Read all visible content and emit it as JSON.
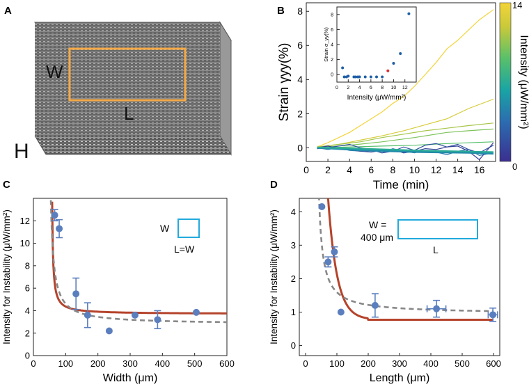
{
  "panels": {
    "A": {
      "label": "A",
      "dim_W": "W",
      "dim_L": "L",
      "dim_H": "H",
      "box_color": "#f4a946"
    },
    "B": {
      "label": "B",
      "inset_ylabel": "Strain σ_yy(%)",
      "colorbar": {
        "label": "Intensity (μW/mm²)",
        "max_label": "14",
        "min_label": "0",
        "min": 0,
        "max": 14
      }
    },
    "C": {
      "label": "C",
      "legend_W": "W",
      "legend_LW": "L=W",
      "legend_color": "#22aadd"
    },
    "D": {
      "label": "D",
      "legend_W": "W =",
      "legend_size": "400 μm",
      "legend_L": "L",
      "legend_color": "#22aadd"
    }
  },
  "colors": {
    "marker": "#5b7fbe",
    "fit_red": "#b5432b",
    "fit_gray": "#888888",
    "inset_red": "#d93030"
  },
  "chart_data": [
    {
      "id": "B",
      "type": "line",
      "title": "",
      "xlabel": "Time (min)",
      "ylabel": "Strain γyy(%)",
      "xlim": [
        0,
        17.5
      ],
      "ylim": [
        -0.8,
        8.5
      ],
      "xticks": [
        0,
        2,
        4,
        6,
        8,
        10,
        12,
        14,
        16
      ],
      "yticks": [
        0,
        2,
        4,
        6,
        8
      ],
      "series": [
        {
          "name": "14",
          "intensity": 14,
          "x": [
            1,
            2,
            3,
            4,
            5,
            6,
            7,
            8,
            9,
            10,
            11,
            12,
            13,
            14,
            15,
            16,
            17.3
          ],
          "y": [
            0.05,
            0.3,
            0.6,
            0.9,
            1.3,
            1.7,
            2.1,
            2.6,
            3.0,
            3.6,
            4.3,
            5.0,
            5.8,
            6.3,
            6.9,
            7.5,
            8.1
          ]
        },
        {
          "name": "12.5",
          "intensity": 12.5,
          "x": [
            1,
            3,
            5,
            7,
            9,
            11,
            13,
            15,
            17.3
          ],
          "y": [
            0.05,
            0.2,
            0.45,
            0.7,
            1.0,
            1.35,
            1.7,
            2.3,
            2.85
          ]
        },
        {
          "name": "11",
          "intensity": 11,
          "x": [
            1,
            3,
            5,
            7,
            9,
            11,
            13,
            15,
            17.3
          ],
          "y": [
            0.05,
            0.2,
            0.35,
            0.6,
            0.8,
            1.0,
            1.15,
            1.3,
            1.45
          ]
        },
        {
          "name": "10",
          "intensity": 10,
          "x": [
            1,
            4,
            7,
            10,
            13,
            15,
            17.3
          ],
          "y": [
            0.02,
            0.15,
            0.35,
            0.6,
            0.9,
            1.0,
            1.1
          ]
        },
        {
          "name": "9",
          "intensity": 9,
          "x": [
            1,
            4,
            7,
            10,
            13,
            17.3
          ],
          "y": [
            0.0,
            0.05,
            0.1,
            0.15,
            0.25,
            0.35
          ]
        },
        {
          "name": "4",
          "intensity": 4,
          "x": [
            1,
            2,
            3,
            4,
            5,
            6,
            7,
            8,
            9,
            10,
            11,
            12,
            13,
            14,
            15,
            16,
            17.3
          ],
          "y": [
            0.0,
            -0.1,
            0.0,
            -0.15,
            -0.2,
            -0.1,
            -0.3,
            -0.05,
            -0.2,
            -0.3,
            -0.15,
            -0.25,
            -0.4,
            -0.2,
            -0.1,
            -0.45,
            -0.3
          ]
        },
        {
          "name": "2",
          "intensity": 2,
          "x": [
            1,
            2,
            3,
            4,
            5,
            6,
            7,
            8,
            9,
            10,
            11,
            12,
            13,
            14,
            15,
            16,
            17.3
          ],
          "y": [
            -0.05,
            0.0,
            0.1,
            0.2,
            0.0,
            -0.1,
            -0.3,
            -0.2,
            0.05,
            -0.15,
            0.15,
            0.25,
            0.05,
            0.2,
            -0.1,
            -0.3,
            0.15
          ]
        },
        {
          "name": "1",
          "intensity": 1,
          "x": [
            1,
            2,
            3,
            4,
            5,
            6,
            7,
            8,
            9,
            10,
            11,
            12,
            13,
            14,
            15,
            16,
            17.3
          ],
          "y": [
            0.0,
            0.1,
            -0.05,
            -0.1,
            -0.2,
            -0.25,
            -0.15,
            -0.1,
            -0.3,
            -0.2,
            -0.05,
            -0.1,
            0.05,
            0.1,
            -0.2,
            -0.7,
            0.3
          ]
        },
        {
          "name": "6",
          "intensity": 6,
          "x": [
            1,
            5,
            10,
            15,
            17.3
          ],
          "y": [
            0.0,
            -0.1,
            -0.2,
            -0.25,
            -0.3
          ]
        },
        {
          "name": "5",
          "intensity": 5,
          "x": [
            1,
            5,
            10,
            15,
            17.3
          ],
          "y": [
            0.0,
            -0.15,
            -0.25,
            -0.3,
            -0.35
          ]
        },
        {
          "name": "7",
          "intensity": 7,
          "x": [
            1,
            5,
            10,
            15,
            17.3
          ],
          "y": [
            0.02,
            -0.05,
            -0.15,
            -0.22,
            -0.25
          ]
        }
      ],
      "inset": {
        "type": "scatter",
        "xlabel": "Intensity (μW/mm²)",
        "ylabel": "Strain σyy(%)",
        "xlim": [
          0,
          14
        ],
        "ylim": [
          -1,
          9
        ],
        "xticks": [
          0,
          2,
          4,
          6,
          8,
          10,
          12
        ],
        "yticks": [
          0,
          2,
          4,
          6,
          8
        ],
        "x": [
          1.0,
          1.3,
          1.7,
          2.0,
          3.0,
          3.3,
          3.7,
          4.0,
          5.0,
          6.0,
          7.0,
          8.0,
          9.0,
          10.0,
          11.2,
          12.7
        ],
        "y": [
          0.9,
          -0.3,
          -0.3,
          -0.2,
          -0.3,
          -0.3,
          -0.3,
          -0.3,
          -0.3,
          -0.3,
          -0.3,
          -0.3,
          0.5,
          1.5,
          2.8,
          8.1
        ],
        "highlight_index": 12
      }
    },
    {
      "id": "C",
      "type": "scatter",
      "xlabel": "Width (μm)",
      "ylabel": "Intensity for Instability (μW/mm²)",
      "xlim": [
        0,
        600
      ],
      "ylim": [
        0,
        14
      ],
      "xticks": [
        0,
        100,
        200,
        300,
        400,
        500,
        600
      ],
      "yticks": [
        0,
        2,
        4,
        6,
        8,
        10,
        12
      ],
      "points": [
        {
          "x": 66,
          "y": 12.5,
          "yerr": 0.5
        },
        {
          "x": 80,
          "y": 11.3,
          "yerr": 0.8
        },
        {
          "x": 132,
          "y": 5.5,
          "yerr": 1.4
        },
        {
          "x": 168,
          "y": 3.6,
          "yerr": 1.1
        },
        {
          "x": 235,
          "y": 2.2,
          "yerr": 0
        },
        {
          "x": 315,
          "y": 3.6,
          "yerr": 0
        },
        {
          "x": 385,
          "y": 3.2,
          "yerr": 0.8
        },
        {
          "x": 505,
          "y": 3.85,
          "yerr": 0
        }
      ],
      "fits": [
        {
          "name": "model",
          "style": "solid",
          "a": 3.7,
          "b": 30,
          "c": 55
        },
        {
          "name": "fit",
          "style": "dashed",
          "a": 2.8,
          "b": 100,
          "c": 45
        }
      ]
    },
    {
      "id": "D",
      "type": "scatter",
      "xlabel": "Length (μm)",
      "ylabel": "Intensity for Instability (μW/mm²)",
      "xlim": [
        -20,
        620
      ],
      "ylim": [
        -0.3,
        4.4
      ],
      "xticks": [
        0,
        100,
        200,
        300,
        400,
        500,
        600
      ],
      "yticks": [
        0,
        1,
        2,
        3,
        4
      ],
      "points": [
        {
          "x": 52,
          "y": 4.15,
          "yerr": 0,
          "xerr": 0
        },
        {
          "x": 72,
          "y": 2.5,
          "yerr": 0.15,
          "xerr": 0
        },
        {
          "x": 92,
          "y": 2.8,
          "yerr": 0.15,
          "xerr": 0
        },
        {
          "x": 113,
          "y": 1.0,
          "yerr": 0,
          "xerr": 0
        },
        {
          "x": 222,
          "y": 1.2,
          "yerr": 0.35,
          "xerr": 0
        },
        {
          "x": 418,
          "y": 1.1,
          "yerr": 0.25,
          "xerr": 30
        },
        {
          "x": 598,
          "y": 0.92,
          "yerr": 0.2,
          "xerr": 15
        }
      ],
      "fits": [
        {
          "name": "model",
          "style": "solid",
          "kind": "exp",
          "a": 0.77,
          "A": 45,
          "k": 0.035,
          "xstart": 50,
          "xflat": 200
        },
        {
          "name": "fit",
          "style": "dashed",
          "kind": "hyper",
          "a": 0.95,
          "b": 45,
          "c": 30
        }
      ]
    }
  ]
}
